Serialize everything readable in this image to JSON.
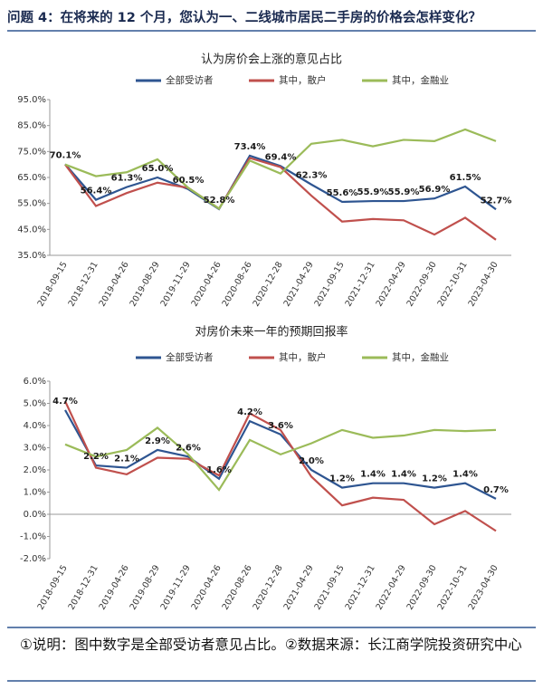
{
  "question": "问题 4：在将来的 12 个月，您认为一、二线城市居民二手房的价格会怎样变化？",
  "note": "①说明：图中数字是全部受访者意见占比。②数据来源：长江商学院投资研究中心",
  "chart_data": [
    {
      "type": "line",
      "title": "认为房价会上涨的意见占比",
      "categories": [
        "2018-09-15",
        "2018-12-31",
        "2019-04-26",
        "2019-08-29",
        "2019-11-29",
        "2020-04-26",
        "2020-08-26",
        "2020-12-28",
        "2021-04-29",
        "2021-09-15",
        "2021-12-31",
        "2022-04-29",
        "2022-09-30",
        "2022-10-31",
        "2023-04-30"
      ],
      "series": [
        {
          "name": "全部受访者",
          "color": "#2e5591",
          "values": [
            70.1,
            56.4,
            61.3,
            65.0,
            60.5,
            52.8,
            73.4,
            69.4,
            62.3,
            55.6,
            55.9,
            55.9,
            56.9,
            61.5,
            52.7
          ],
          "value_labels": [
            "70.1%",
            "56.4%",
            "61.3%",
            "65.0%",
            "60.5%",
            "52.8%",
            "73.4%",
            "69.4%",
            "62.3%",
            "55.6%",
            "55.9%",
            "55.9%",
            "56.9%",
            "61.5%",
            "52.7%"
          ]
        },
        {
          "name": "其中，散户",
          "color": "#c0504d",
          "values": [
            70,
            54,
            59,
            63,
            61,
            53,
            72.5,
            69,
            58,
            48,
            49,
            48.5,
            43,
            49.5,
            41
          ]
        },
        {
          "name": "其中，金融业",
          "color": "#9bbb59",
          "values": [
            70,
            65.5,
            67,
            72,
            61,
            53,
            71.5,
            66.5,
            78,
            79.5,
            77,
            79.5,
            79,
            83.5,
            79
          ]
        }
      ],
      "ylim": [
        35,
        95
      ],
      "yticks": [
        {
          "value": 35,
          "label": "35.0%"
        },
        {
          "value": 45,
          "label": "45.0%"
        },
        {
          "value": 55,
          "label": "55.0%"
        },
        {
          "value": 65,
          "label": "65.0%"
        },
        {
          "value": 75,
          "label": "75.0%"
        },
        {
          "value": 85,
          "label": "85.0%"
        },
        {
          "value": 95,
          "label": "95.0%"
        }
      ],
      "legend": "top"
    },
    {
      "type": "line",
      "title": "对房价未来一年的预期回报率",
      "categories": [
        "2018-09-15",
        "2018-12-31",
        "2019-04-26",
        "2019-08-29",
        "2019-11-29",
        "2020-04-26",
        "2020-08-26",
        "2020-12-28",
        "2021-04-29",
        "2021-09-15",
        "2021-12-31",
        "2022-04-29",
        "2022-09-30",
        "2022-10-31",
        "2023-04-30"
      ],
      "series": [
        {
          "name": "全部受访者",
          "color": "#2e5591",
          "values": [
            4.7,
            2.2,
            2.1,
            2.9,
            2.6,
            1.6,
            4.2,
            3.6,
            2.0,
            1.2,
            1.4,
            1.4,
            1.2,
            1.4,
            0.7
          ],
          "value_labels": [
            "4.7%",
            "2.2%",
            "2.1%",
            "2.9%",
            "2.6%",
            "1.6%",
            "4.2%",
            "3.6%",
            "2.0%",
            "1.2%",
            "1.4%",
            "1.4%",
            "1.2%",
            "1.4%",
            "0.7%"
          ]
        },
        {
          "name": "其中，散户",
          "color": "#c0504d",
          "values": [
            5.1,
            2.1,
            1.8,
            2.55,
            2.5,
            1.75,
            4.55,
            3.8,
            1.7,
            0.4,
            0.75,
            0.65,
            -0.45,
            0.15,
            -0.75
          ]
        },
        {
          "name": "其中，金融业",
          "color": "#9bbb59",
          "values": [
            3.15,
            2.6,
            2.9,
            3.9,
            2.7,
            1.1,
            3.35,
            2.7,
            3.2,
            3.8,
            3.45,
            3.55,
            3.8,
            3.75,
            3.8
          ]
        }
      ],
      "ylim": [
        -2,
        6
      ],
      "yticks": [
        {
          "value": -2,
          "label": "-2.0%"
        },
        {
          "value": -1,
          "label": "-1.0%"
        },
        {
          "value": 0,
          "label": "0.0%"
        },
        {
          "value": 1,
          "label": "1.0%"
        },
        {
          "value": 2,
          "label": "2.0%"
        },
        {
          "value": 3,
          "label": "3.0%"
        },
        {
          "value": 4,
          "label": "4.0%"
        },
        {
          "value": 5,
          "label": "5.0%"
        },
        {
          "value": 6,
          "label": "6.0%"
        }
      ],
      "legend": "top"
    }
  ]
}
